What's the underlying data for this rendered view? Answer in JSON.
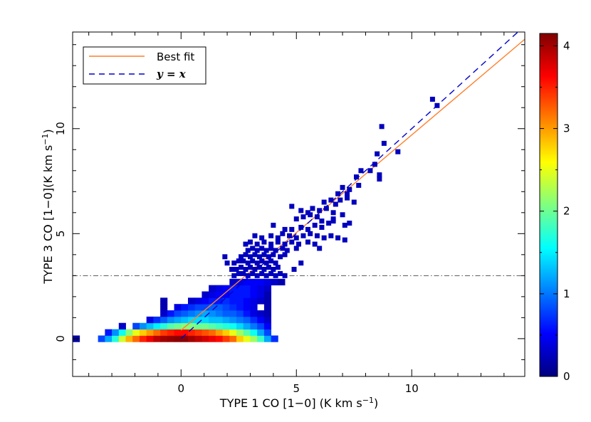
{
  "chart_data": {
    "type": "heatmap",
    "xlabel": "TYPE 1 CO [1−0] (K km s",
    "xlabel_exp": "−1",
    "xlabel_end": ")",
    "ylabel": "TYPE 3 CO [1−0](K km s",
    "ylabel_exp": "−1",
    "ylabel_end": ")",
    "xlim": [
      -4.7,
      14.9
    ],
    "ylim": [
      -1.8,
      14.6
    ],
    "xticks": [
      0,
      5,
      10
    ],
    "yticks": [
      0,
      5,
      10
    ],
    "grid": false,
    "legend_position": "top-left",
    "legend": [
      {
        "label": "Best fit",
        "style": "solid",
        "color": "#ff7f2a"
      },
      {
        "label": "y = x",
        "style": "dashed",
        "color": "#0000cc"
      }
    ],
    "colorbar": {
      "min": 0,
      "max": 4.15,
      "ticks": [
        0,
        1,
        2,
        3,
        4
      ],
      "tick_labels": [
        "0",
        "1",
        "2",
        "3",
        "4"
      ],
      "colormap": [
        "#00007f",
        "#0000ff",
        "#0080ff",
        "#00ffff",
        "#80ff80",
        "#ffff00",
        "#ff8000",
        "#ff0000",
        "#7f0000"
      ]
    },
    "best_fit": {
      "slope": 0.93,
      "intercept": 0.4,
      "x_start": 0
    },
    "one_to_one": {
      "slope": 1,
      "intercept": 0,
      "x_start": 0
    },
    "threshold_line_y": 3,
    "bin_width": 0.3,
    "bin_height": 0.3,
    "bins": [
      [
        -4.55,
        0,
        0.15
      ],
      [
        -3.45,
        0,
        0.8
      ],
      [
        -3.15,
        0,
        1.2
      ],
      [
        -2.85,
        0,
        1.7
      ],
      [
        -2.55,
        0,
        2.4
      ],
      [
        -2.25,
        0,
        2.9
      ],
      [
        -1.95,
        0,
        3.2
      ],
      [
        -1.65,
        0,
        3.5
      ],
      [
        -1.35,
        0,
        3.7
      ],
      [
        -1.05,
        0,
        3.9
      ],
      [
        -0.75,
        0,
        4.0
      ],
      [
        -0.45,
        0,
        4.05
      ],
      [
        -0.15,
        0,
        4.1
      ],
      [
        0.15,
        0,
        4.1
      ],
      [
        0.45,
        0,
        4.0
      ],
      [
        0.75,
        0,
        3.9
      ],
      [
        1.05,
        0,
        3.8
      ],
      [
        1.35,
        0,
        3.7
      ],
      [
        1.65,
        0,
        3.6
      ],
      [
        1.95,
        0,
        3.4
      ],
      [
        2.25,
        0,
        3.2
      ],
      [
        2.55,
        0,
        2.8
      ],
      [
        2.85,
        0,
        2.5
      ],
      [
        3.15,
        0,
        2.2
      ],
      [
        3.45,
        0,
        1.8
      ],
      [
        3.75,
        0,
        1.2
      ],
      [
        4.05,
        0,
        0.7
      ],
      [
        -3.15,
        0.3,
        0.6
      ],
      [
        -2.85,
        0.3,
        1.1
      ],
      [
        -2.55,
        0.3,
        1.6
      ],
      [
        -2.25,
        0.3,
        2.1
      ],
      [
        -1.95,
        0.3,
        2.5
      ],
      [
        -1.65,
        0.3,
        2.8
      ],
      [
        -1.35,
        0.3,
        3.0
      ],
      [
        -1.05,
        0.3,
        3.2
      ],
      [
        -0.75,
        0.3,
        3.4
      ],
      [
        -0.45,
        0.3,
        3.5
      ],
      [
        -0.15,
        0.3,
        3.6
      ],
      [
        0.15,
        0.3,
        3.6
      ],
      [
        0.45,
        0.3,
        3.5
      ],
      [
        0.75,
        0.3,
        3.4
      ],
      [
        1.05,
        0.3,
        3.3
      ],
      [
        1.35,
        0.3,
        3.2
      ],
      [
        1.65,
        0.3,
        3.0
      ],
      [
        1.95,
        0.3,
        2.8
      ],
      [
        2.25,
        0.3,
        2.5
      ],
      [
        2.55,
        0.3,
        2.2
      ],
      [
        2.85,
        0.3,
        1.9
      ],
      [
        3.15,
        0.3,
        1.6
      ],
      [
        3.45,
        0.3,
        1.2
      ],
      [
        3.75,
        0.3,
        0.8
      ],
      [
        -2.55,
        0.6,
        0.3
      ],
      [
        -1.95,
        0.6,
        0.8
      ],
      [
        -1.65,
        0.6,
        1.1
      ],
      [
        -1.35,
        0.6,
        1.3
      ],
      [
        -1.05,
        0.6,
        1.5
      ],
      [
        -0.75,
        0.6,
        1.7
      ],
      [
        -0.45,
        0.6,
        1.9
      ],
      [
        -0.15,
        0.6,
        2.0
      ],
      [
        0.15,
        0.6,
        2.1
      ],
      [
        0.45,
        0.6,
        2.1
      ],
      [
        0.75,
        0.6,
        2.0
      ],
      [
        1.05,
        0.6,
        2.0
      ],
      [
        1.35,
        0.6,
        1.9
      ],
      [
        1.65,
        0.6,
        1.8
      ],
      [
        1.95,
        0.6,
        1.7
      ],
      [
        2.25,
        0.6,
        1.6
      ],
      [
        2.55,
        0.6,
        1.4
      ],
      [
        2.85,
        0.6,
        1.2
      ],
      [
        3.15,
        0.6,
        1.0
      ],
      [
        3.45,
        0.6,
        0.8
      ],
      [
        3.75,
        0.6,
        0.5
      ],
      [
        -1.35,
        0.9,
        0.4
      ],
      [
        -1.05,
        0.9,
        0.7
      ],
      [
        -0.75,
        0.9,
        0.9
      ],
      [
        -0.45,
        0.9,
        1.1
      ],
      [
        -0.15,
        0.9,
        1.2
      ],
      [
        0.15,
        0.9,
        1.3
      ],
      [
        0.45,
        0.9,
        1.4
      ],
      [
        0.75,
        0.9,
        1.4
      ],
      [
        1.05,
        0.9,
        1.4
      ],
      [
        1.35,
        0.9,
        1.3
      ],
      [
        1.65,
        0.9,
        1.3
      ],
      [
        1.95,
        0.9,
        1.2
      ],
      [
        2.25,
        0.9,
        1.1
      ],
      [
        2.55,
        0.9,
        1.0
      ],
      [
        2.85,
        0.9,
        0.9
      ],
      [
        3.15,
        0.9,
        0.7
      ],
      [
        3.45,
        0.9,
        0.5
      ],
      [
        3.75,
        0.9,
        0.3
      ],
      [
        -0.75,
        1.2,
        0.3
      ],
      [
        -0.45,
        1.2,
        0.6
      ],
      [
        -0.15,
        1.2,
        0.8
      ],
      [
        0.15,
        1.2,
        0.9
      ],
      [
        0.45,
        1.2,
        1.0
      ],
      [
        0.75,
        1.2,
        1.1
      ],
      [
        1.05,
        1.2,
        1.2
      ],
      [
        1.35,
        1.2,
        1.1
      ],
      [
        1.65,
        1.2,
        1.0
      ],
      [
        1.95,
        1.2,
        0.9
      ],
      [
        2.25,
        1.2,
        0.9
      ],
      [
        2.55,
        1.2,
        0.8
      ],
      [
        2.85,
        1.2,
        0.6
      ],
      [
        3.15,
        1.2,
        0.4
      ],
      [
        3.45,
        1.2,
        0.3
      ],
      [
        3.75,
        1.2,
        0.2
      ],
      [
        -0.75,
        1.5,
        0.2
      ],
      [
        -0.15,
        1.5,
        0.4
      ],
      [
        0.15,
        1.5,
        0.6
      ],
      [
        0.45,
        1.5,
        0.7
      ],
      [
        0.75,
        1.5,
        0.8
      ],
      [
        1.05,
        1.5,
        0.8
      ],
      [
        1.35,
        1.5,
        0.9
      ],
      [
        1.65,
        1.5,
        0.9
      ],
      [
        1.95,
        1.5,
        0.8
      ],
      [
        2.25,
        1.5,
        0.7
      ],
      [
        2.55,
        1.5,
        0.6
      ],
      [
        2.85,
        1.5,
        0.5
      ],
      [
        3.15,
        1.5,
        0.4
      ],
      [
        3.75,
        1.5,
        0.2
      ],
      [
        -0.75,
        1.8,
        0.2
      ],
      [
        0.45,
        1.8,
        0.3
      ],
      [
        0.75,
        1.8,
        0.4
      ],
      [
        1.05,
        1.8,
        0.5
      ],
      [
        1.35,
        1.8,
        0.6
      ],
      [
        1.65,
        1.8,
        0.6
      ],
      [
        1.95,
        1.8,
        0.7
      ],
      [
        2.25,
        1.8,
        0.6
      ],
      [
        2.55,
        1.8,
        0.6
      ],
      [
        2.85,
        1.8,
        0.5
      ],
      [
        3.15,
        1.8,
        0.4
      ],
      [
        3.45,
        1.8,
        0.3
      ],
      [
        3.75,
        1.8,
        0.2
      ],
      [
        1.05,
        2.1,
        0.3
      ],
      [
        1.35,
        2.1,
        0.4
      ],
      [
        1.65,
        2.1,
        0.5
      ],
      [
        1.95,
        2.1,
        0.5
      ],
      [
        2.25,
        2.1,
        0.6
      ],
      [
        2.55,
        2.1,
        0.6
      ],
      [
        2.85,
        2.1,
        0.6
      ],
      [
        3.15,
        2.1,
        0.5
      ],
      [
        3.45,
        2.1,
        0.4
      ],
      [
        3.75,
        2.1,
        0.2
      ],
      [
        1.35,
        2.4,
        0.3
      ],
      [
        1.65,
        2.4,
        0.4
      ],
      [
        1.95,
        2.4,
        0.5
      ],
      [
        2.25,
        2.4,
        0.6
      ],
      [
        2.55,
        2.4,
        0.6
      ],
      [
        2.85,
        2.4,
        0.6
      ],
      [
        3.15,
        2.4,
        0.5
      ],
      [
        3.45,
        2.4,
        0.4
      ],
      [
        3.75,
        2.4,
        0.3
      ],
      [
        2.25,
        2.7,
        0.3
      ],
      [
        2.55,
        2.7,
        0.4
      ],
      [
        2.85,
        2.7,
        0.5
      ],
      [
        3.15,
        2.7,
        0.5
      ],
      [
        3.45,
        2.7,
        0.5
      ],
      [
        3.75,
        2.7,
        0.4
      ],
      [
        4.05,
        2.7,
        0.3
      ],
      [
        4.35,
        2.7,
        0.2
      ]
    ],
    "points": [
      [
        2.3,
        3.0
      ],
      [
        2.5,
        3.1
      ],
      [
        2.7,
        3.1
      ],
      [
        2.9,
        3.0
      ],
      [
        3.1,
        3.1
      ],
      [
        3.3,
        3.0
      ],
      [
        3.5,
        3.1
      ],
      [
        3.7,
        3.0
      ],
      [
        3.9,
        3.1
      ],
      [
        4.1,
        3.0
      ],
      [
        4.3,
        3.1
      ],
      [
        4.5,
        3.0
      ],
      [
        2.2,
        3.3
      ],
      [
        2.4,
        3.3
      ],
      [
        2.6,
        3.4
      ],
      [
        2.8,
        3.3
      ],
      [
        3.0,
        3.4
      ],
      [
        3.2,
        3.3
      ],
      [
        3.4,
        3.4
      ],
      [
        3.6,
        3.3
      ],
      [
        3.8,
        3.4
      ],
      [
        4.0,
        3.3
      ],
      [
        4.2,
        3.4
      ],
      [
        4.9,
        3.3
      ],
      [
        2.0,
        3.6
      ],
      [
        2.3,
        3.6
      ],
      [
        2.5,
        3.7
      ],
      [
        2.7,
        3.7
      ],
      [
        2.9,
        3.6
      ],
      [
        3.1,
        3.7
      ],
      [
        3.3,
        3.6
      ],
      [
        3.5,
        3.7
      ],
      [
        3.7,
        3.6
      ],
      [
        3.9,
        3.7
      ],
      [
        4.1,
        3.6
      ],
      [
        5.2,
        3.6
      ],
      [
        1.9,
        3.9
      ],
      [
        2.6,
        3.9
      ],
      [
        2.8,
        4.0
      ],
      [
        3.0,
        3.9
      ],
      [
        3.2,
        4.0
      ],
      [
        3.4,
        3.9
      ],
      [
        3.6,
        4.0
      ],
      [
        3.8,
        3.9
      ],
      [
        4.0,
        4.0
      ],
      [
        4.3,
        3.9
      ],
      [
        4.5,
        4.0
      ],
      [
        2.9,
        4.2
      ],
      [
        3.1,
        4.3
      ],
      [
        3.3,
        4.2
      ],
      [
        3.5,
        4.3
      ],
      [
        3.7,
        4.2
      ],
      [
        3.9,
        4.3
      ],
      [
        4.1,
        4.2
      ],
      [
        4.4,
        4.3
      ],
      [
        4.6,
        4.2
      ],
      [
        5.0,
        4.3
      ],
      [
        2.8,
        4.5
      ],
      [
        3.0,
        4.6
      ],
      [
        3.3,
        4.5
      ],
      [
        3.6,
        4.6
      ],
      [
        3.9,
        4.5
      ],
      [
        4.2,
        4.6
      ],
      [
        4.5,
        4.5
      ],
      [
        4.8,
        4.6
      ],
      [
        5.1,
        4.5
      ],
      [
        5.5,
        4.6
      ],
      [
        5.8,
        4.5
      ],
      [
        6.0,
        4.3
      ],
      [
        3.2,
        4.9
      ],
      [
        3.5,
        4.8
      ],
      [
        3.9,
        4.9
      ],
      [
        4.2,
        4.8
      ],
      [
        4.4,
        5.0
      ],
      [
        4.7,
        4.9
      ],
      [
        5.0,
        4.8
      ],
      [
        5.3,
        4.9
      ],
      [
        5.6,
        5.0
      ],
      [
        5.9,
        4.9
      ],
      [
        6.2,
        4.8
      ],
      [
        6.5,
        4.9
      ],
      [
        6.8,
        4.8
      ],
      [
        7.1,
        4.7
      ],
      [
        4.5,
        5.2
      ],
      [
        4.8,
        5.2
      ],
      [
        5.2,
        5.3
      ],
      [
        5.5,
        5.2
      ],
      [
        5.8,
        5.4
      ],
      [
        6.1,
        5.3
      ],
      [
        6.4,
        5.5
      ],
      [
        6.6,
        5.6
      ],
      [
        4.0,
        5.4
      ],
      [
        5.0,
        5.7
      ],
      [
        5.3,
        5.8
      ],
      [
        5.6,
        5.9
      ],
      [
        5.9,
        5.8
      ],
      [
        6.1,
        5.6
      ],
      [
        6.6,
        5.7
      ],
      [
        7.0,
        5.9
      ],
      [
        7.1,
        5.4
      ],
      [
        7.3,
        5.5
      ],
      [
        5.2,
        6.1
      ],
      [
        5.5,
        6.0
      ],
      [
        5.7,
        6.2
      ],
      [
        6.0,
        6.1
      ],
      [
        6.3,
        6.2
      ],
      [
        6.6,
        6.0
      ],
      [
        4.8,
        6.3
      ],
      [
        6.2,
        6.5
      ],
      [
        6.5,
        6.6
      ],
      [
        6.7,
        6.4
      ],
      [
        7.2,
        6.7
      ],
      [
        6.9,
        6.6
      ],
      [
        7.5,
        6.5
      ],
      [
        6.8,
        6.9
      ],
      [
        7.2,
        6.9
      ],
      [
        7.0,
        7.2
      ],
      [
        7.3,
        7.1
      ],
      [
        7.7,
        7.3
      ],
      [
        7.6,
        7.7
      ],
      [
        7.8,
        8.0
      ],
      [
        8.6,
        7.6
      ],
      [
        8.6,
        7.8
      ],
      [
        8.2,
        8.0
      ],
      [
        8.4,
        8.3
      ],
      [
        8.5,
        8.8
      ],
      [
        9.4,
        8.9
      ],
      [
        8.8,
        9.3
      ],
      [
        8.7,
        10.1
      ],
      [
        10.9,
        11.4
      ],
      [
        11.1,
        11.1
      ]
    ]
  }
}
